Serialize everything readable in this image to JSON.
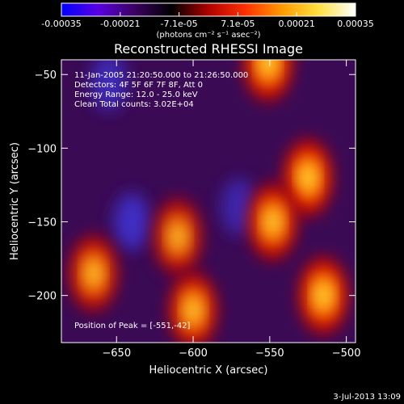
{
  "colorbar": {
    "tick_labels": [
      "-0.00035",
      "-0.00021",
      "-7.1e-05",
      "7.1e-05",
      "0.00021",
      "0.00035"
    ],
    "range": [
      -0.00035,
      0.00035
    ],
    "unit_label": "(photons cm⁻² s⁻¹ asec⁻²)",
    "colors": [
      "#0000ff",
      "#5a00e0",
      "#3a0060",
      "#000000",
      "#b00000",
      "#ff3000",
      "#ff9a00",
      "#ffe040",
      "#ffffff"
    ]
  },
  "chart_data": {
    "type": "heatmap",
    "title": "Reconstructed RHESSI Image",
    "xlabel": "Heliocentric X (arcsec)",
    "ylabel": "Heliocentric Y (arcsec)",
    "xlim": [
      -686,
      -494
    ],
    "ylim": [
      -232,
      -40
    ],
    "xticks": [
      -650,
      -600,
      -550,
      -500
    ],
    "yticks": [
      -50,
      -100,
      -150,
      -200
    ],
    "xtick_labels": [
      "−650",
      "−600",
      "−550",
      "−500"
    ],
    "ytick_labels": [
      "−50",
      "−100",
      "−150",
      "−200"
    ],
    "annotations": {
      "time_range": "11-Jan-2005 21:20:50.000 to 21:26:50.000",
      "detectors": "Detectors: 4F 5F 6F 7F 8F, Att 0",
      "energy": "Energy Range: 12.0 - 25.0 keV",
      "method": "Clean    Total counts: 3.02E+04",
      "peak": "Position of Peak = [-551,-42]"
    },
    "bright_sources": [
      {
        "x": -551,
        "y": -42,
        "v": 1.0
      },
      {
        "x": -525,
        "y": -120,
        "v": 0.9
      },
      {
        "x": -548,
        "y": -150,
        "v": 0.85
      },
      {
        "x": -515,
        "y": -200,
        "v": 0.95
      },
      {
        "x": -610,
        "y": -160,
        "v": 0.7
      },
      {
        "x": -665,
        "y": -185,
        "v": 0.75
      },
      {
        "x": -600,
        "y": -210,
        "v": 0.8
      }
    ],
    "dark_sources": [
      {
        "x": -640,
        "y": -150,
        "v": -0.8
      },
      {
        "x": -655,
        "y": -55,
        "v": -0.7
      },
      {
        "x": -570,
        "y": -140,
        "v": -0.6
      }
    ]
  },
  "footer": {
    "timestamp": "3-Jul-2013 13:09"
  }
}
